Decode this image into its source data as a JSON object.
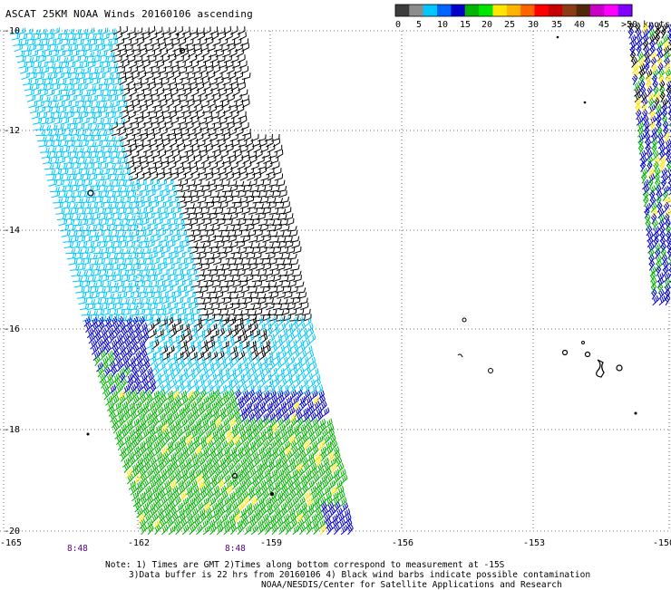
{
  "title": "ASCAT 25KM NOAA Winds 20160106 ascending",
  "colorbar": {
    "ticks": [
      "0",
      "5",
      "10",
      "15",
      "20",
      "25",
      "30",
      "35",
      "40",
      "45",
      ">50 knots"
    ],
    "colors": [
      "#3c3c3c",
      "#8c8c8c",
      "#00c8ff",
      "#0064ff",
      "#0000c8",
      "#00b400",
      "#00e600",
      "#ffe600",
      "#ffb400",
      "#ff6400",
      "#ff0000",
      "#c80000",
      "#8c3c14",
      "#50280a",
      "#c800c8",
      "#ff00ff",
      "#8000ff"
    ]
  },
  "map": {
    "lat_labels": [
      "-10",
      "-12",
      "-14",
      "-16",
      "-18",
      "-20"
    ],
    "lon_labels": [
      "-165",
      "-162",
      "-159",
      "-156",
      "-153",
      "-150"
    ],
    "time_labels": [
      "8:48",
      "8:48"
    ],
    "wind_colors": {
      "black": "#000000",
      "cyan": "#00c8ff",
      "blue": "#0000c8",
      "green": "#00b400",
      "yellow": "#ffe600"
    }
  },
  "notes": {
    "line1": "Note: 1) Times are GMT 2)Times along bottom correspond to measurement at -15S",
    "line2": "3)Data buffer is 22 hrs from 20160106 4) Black wind barbs indicate possible contamination",
    "line3": "NOAA/NESDIS/Center for Satellite Applications and Research"
  }
}
